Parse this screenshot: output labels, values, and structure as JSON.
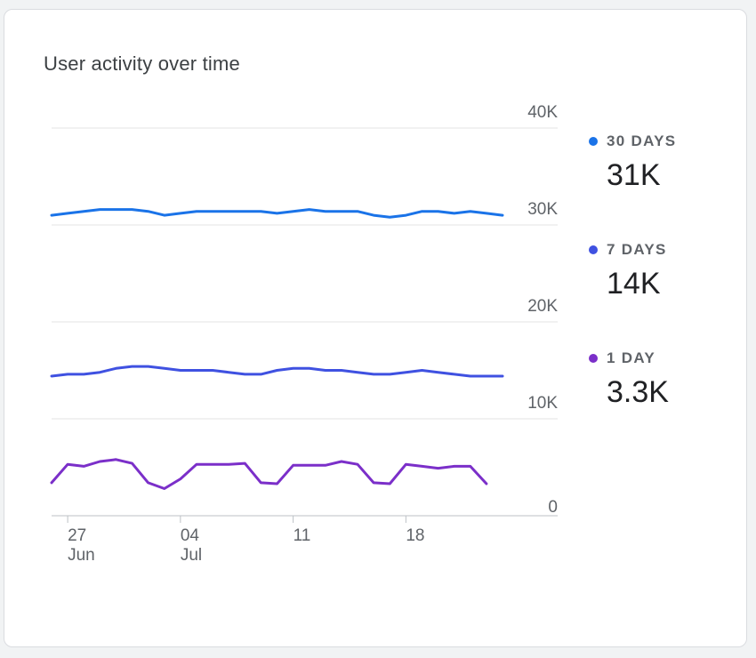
{
  "card": {
    "title": "User activity over time"
  },
  "chart_data": {
    "type": "line",
    "x": [
      "Jun 26",
      "Jun 27",
      "Jun 28",
      "Jun 29",
      "Jun 30",
      "Jul 01",
      "Jul 02",
      "Jul 03",
      "Jul 04",
      "Jul 05",
      "Jul 06",
      "Jul 07",
      "Jul 08",
      "Jul 09",
      "Jul 10",
      "Jul 11",
      "Jul 12",
      "Jul 13",
      "Jul 14",
      "Jul 15",
      "Jul 16",
      "Jul 17",
      "Jul 18",
      "Jul 19",
      "Jul 20",
      "Jul 21",
      "Jul 22",
      "Jul 23",
      "Jul 24"
    ],
    "x_tick_labels": [
      {
        "x": "Jun 27",
        "day": "27",
        "month": "Jun"
      },
      {
        "x": "Jul 04",
        "day": "04",
        "month": "Jul"
      },
      {
        "x": "Jul 11",
        "day": "11",
        "month": ""
      },
      {
        "x": "Jul 18",
        "day": "18",
        "month": ""
      }
    ],
    "y_tick_labels": [
      "0",
      "10K",
      "20K",
      "30K",
      "40K"
    ],
    "ylim": [
      0,
      40000
    ],
    "y_ticks": [
      0,
      10000,
      20000,
      30000,
      40000
    ],
    "y_axis_side": "right",
    "grid": true,
    "legend_position": "right",
    "series": [
      {
        "name": "30 DAYS",
        "color": "#1a73e8",
        "values": [
          31000,
          31200,
          31400,
          31600,
          31600,
          31600,
          31400,
          31000,
          31200,
          31400,
          31400,
          31400,
          31400,
          31400,
          31200,
          31400,
          31600,
          31400,
          31400,
          31400,
          31000,
          30800,
          31000,
          31400,
          31400,
          31200,
          31400,
          31200,
          31000
        ]
      },
      {
        "name": "7 DAYS",
        "color": "#3f51e1",
        "values": [
          14400,
          14600,
          14600,
          14800,
          15200,
          15400,
          15400,
          15200,
          15000,
          15000,
          15000,
          14800,
          14600,
          14600,
          15000,
          15200,
          15200,
          15000,
          15000,
          14800,
          14600,
          14600,
          14800,
          15000,
          14800,
          14600,
          14400,
          14400,
          14400
        ]
      },
      {
        "name": "1 DAY",
        "color": "#7b2fc9",
        "values": [
          3400,
          5300,
          5100,
          5600,
          5800,
          5400,
          3400,
          2800,
          3800,
          5300,
          5300,
          5300,
          5400,
          3400,
          3300,
          5200,
          5200,
          5200,
          5600,
          5300,
          3400,
          3300,
          5300,
          5100,
          4900,
          5100,
          5100,
          3300,
          null
        ]
      }
    ]
  },
  "legend": [
    {
      "label": "30 DAYS",
      "value": "31K",
      "color": "#1a73e8"
    },
    {
      "label": "7 DAYS",
      "value": "14K",
      "color": "#3f51e1"
    },
    {
      "label": "1 DAY",
      "value": "3.3K",
      "color": "#7b2fc9"
    }
  ]
}
